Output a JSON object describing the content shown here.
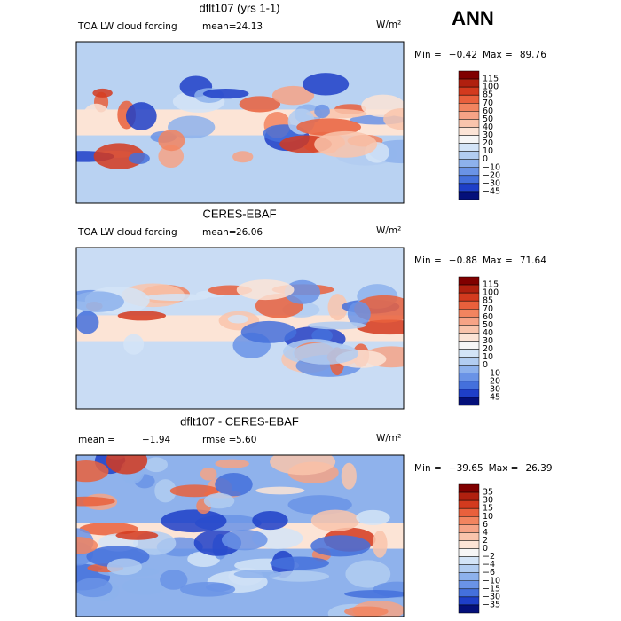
{
  "header": "ANN",
  "panels": [
    {
      "title": "dflt107 (yrs 1-1)",
      "left_label": "TOA LW cloud forcing",
      "stat1_label": "mean=",
      "stat1": "24.13",
      "unit": "W/m²",
      "min_label": "Min =",
      "min": "−0.42",
      "max_label": "Max =",
      "max": "89.76",
      "levels": [
        "115",
        "100",
        "85",
        "70",
        "60",
        "50",
        "40",
        "30",
        "20",
        "10",
        "0",
        "−10",
        "−20",
        "−30",
        "−45"
      ],
      "colors": [
        "#800000",
        "#b0200f",
        "#d33a1e",
        "#e9603c",
        "#f2845f",
        "#f6a386",
        "#f9c4ac",
        "#fce4d6",
        "#f6f6f6",
        "#d3e4f7",
        "#b2cdf1",
        "#8db1ec",
        "#6a93e6",
        "#4470dc",
        "#1e3fc8",
        "#04107a"
      ],
      "base": "#b9d2f2"
    },
    {
      "title": "CERES-EBAF",
      "left_label": "TOA LW cloud forcing",
      "stat1_label": "mean=",
      "stat1": "26.06",
      "unit": "W/m²",
      "min_label": "Min =",
      "min": "−0.88",
      "max_label": "Max =",
      "max": "71.64",
      "levels": [
        "115",
        "100",
        "85",
        "70",
        "60",
        "50",
        "40",
        "30",
        "20",
        "10",
        "0",
        "−10",
        "−20",
        "−30",
        "−45"
      ],
      "colors": [
        "#800000",
        "#b0200f",
        "#d33a1e",
        "#e9603c",
        "#f2845f",
        "#f6a386",
        "#f9c4ac",
        "#fce4d6",
        "#f6f6f6",
        "#d3e4f7",
        "#b2cdf1",
        "#8db1ec",
        "#6a93e6",
        "#4470dc",
        "#1e3fc8",
        "#04107a"
      ],
      "base": "#c9dcf4"
    },
    {
      "title": "dflt107 - CERES-EBAF",
      "left_label": "mean =",
      "stat1_label": "rmse =",
      "left_value": "−1.94",
      "stat1": "5.60",
      "unit": "W/m²",
      "min_label": "Min =",
      "min": "−39.65",
      "max_label": "Max =",
      "max": "26.39",
      "levels": [
        "35",
        "30",
        "15",
        "10",
        "6",
        "4",
        "2",
        "0",
        "−2",
        "−4",
        "−6",
        "−10",
        "−15",
        "−30",
        "−35"
      ],
      "colors": [
        "#800000",
        "#b0200f",
        "#d33a1e",
        "#e9603c",
        "#f2845f",
        "#f6a386",
        "#f9c4ac",
        "#fce4d6",
        "#f6f6f6",
        "#d3e4f7",
        "#b2cdf1",
        "#8db1ec",
        "#6a93e6",
        "#4470dc",
        "#1e3fc8",
        "#04107a"
      ],
      "base": "#8fb2ec"
    }
  ]
}
